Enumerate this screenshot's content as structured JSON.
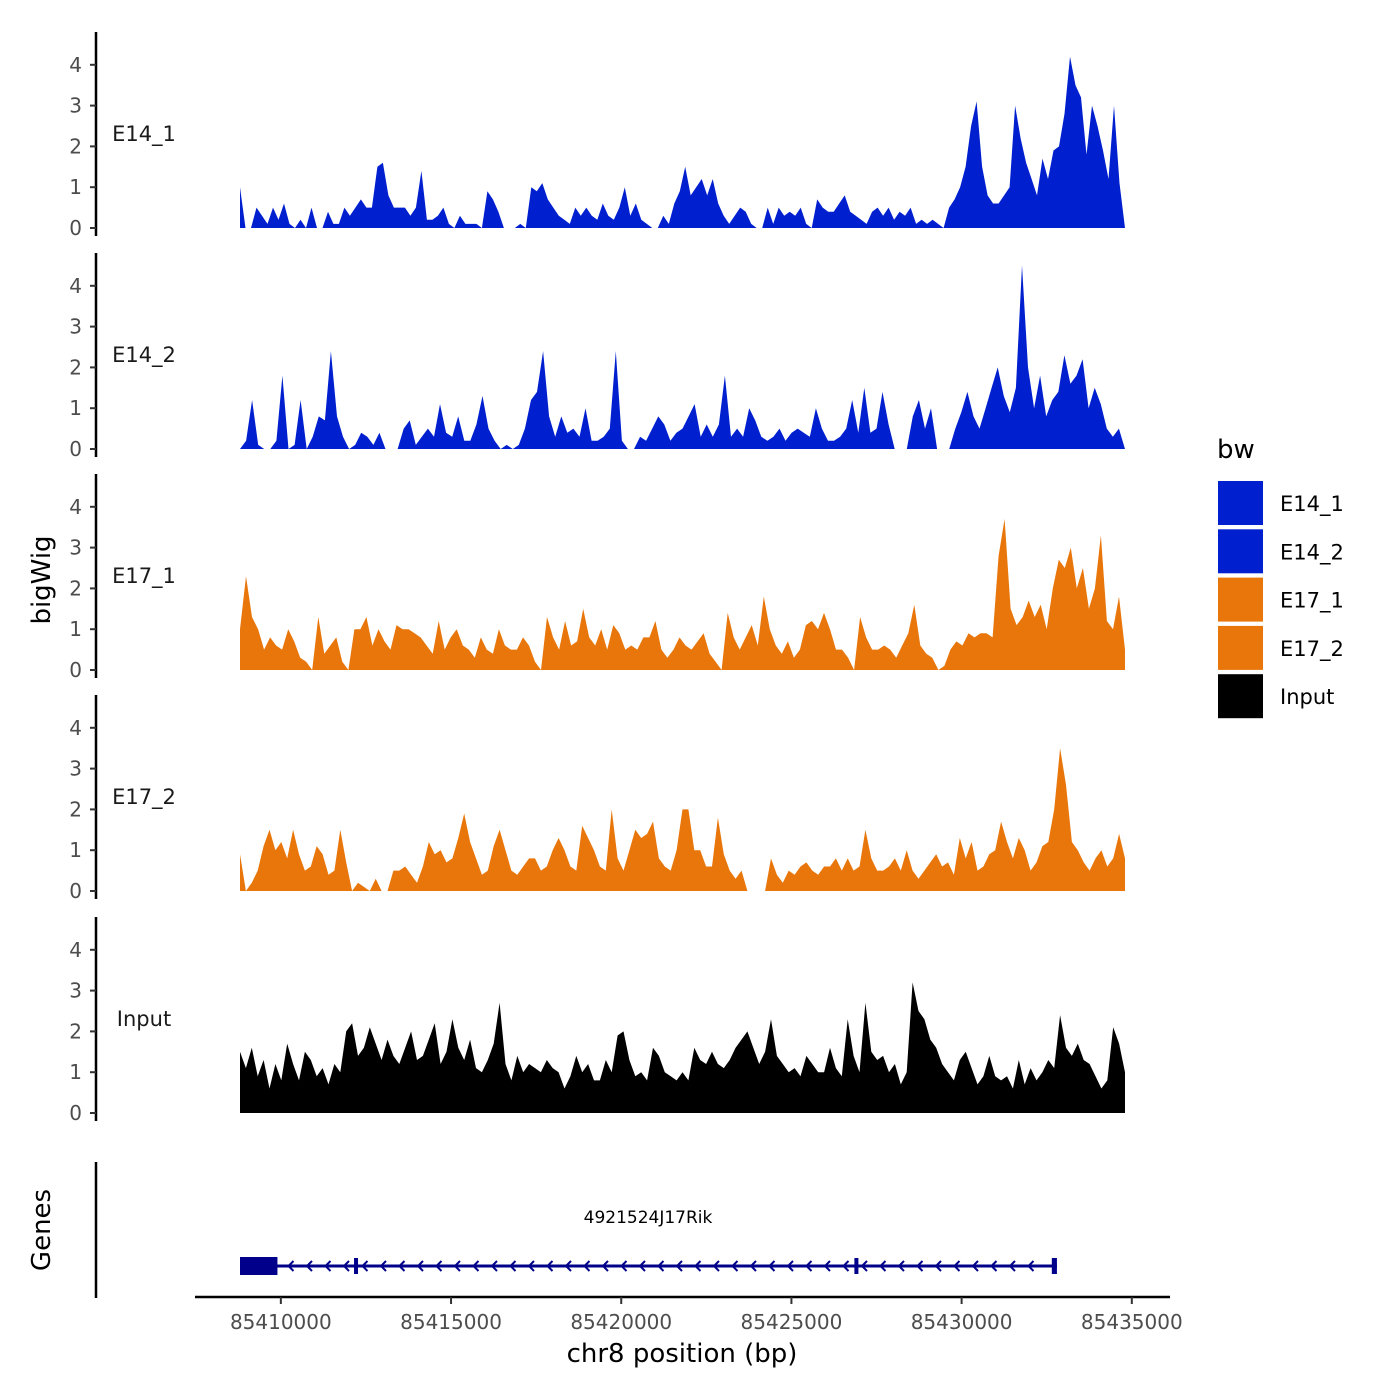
{
  "chart_data": {
    "type": "area",
    "title": "",
    "xlabel": "chr8 position (bp)",
    "ylabel": "bigWig",
    "genes_label": "Genes",
    "xlim": [
      85407200,
      85435600
    ],
    "ylim": [
      0,
      4.6
    ],
    "x_ticks": [
      85410000,
      85415000,
      85420000,
      85425000,
      85430000,
      85435000
    ],
    "x_tick_labels": [
      "85410000",
      "85415000",
      "85420000",
      "85425000",
      "85430000",
      "85435000"
    ],
    "y_ticks": [
      0,
      1,
      2,
      3,
      4
    ],
    "y_tick_labels": [
      "0",
      "1",
      "2",
      "3",
      "4"
    ],
    "legend": {
      "title": "bw",
      "position": "right",
      "entries": [
        {
          "label": "E14_1",
          "color": "#0020d0"
        },
        {
          "label": "E14_2",
          "color": "#0020d0"
        },
        {
          "label": "E17_1",
          "color": "#e8760a"
        },
        {
          "label": "E17_2",
          "color": "#e8760a"
        },
        {
          "label": "Input",
          "color": "#000000"
        }
      ]
    },
    "tracks": [
      {
        "name": "E14_1",
        "color": "#0020d0",
        "x_start": 85408800,
        "x_end": 85434800,
        "values": [
          1.0,
          0,
          0,
          0.5,
          0.3,
          0.1,
          0.5,
          0.2,
          0.6,
          0.1,
          0,
          0.2,
          0,
          0.5,
          0,
          0,
          0.4,
          0.1,
          0.1,
          0.5,
          0.3,
          0.5,
          0.7,
          0.5,
          0.5,
          1.5,
          1.6,
          0.8,
          0.5,
          0.5,
          0.5,
          0.3,
          0.5,
          1.4,
          0.2,
          0.2,
          0.3,
          0.5,
          0.1,
          0,
          0.3,
          0.1,
          0.1,
          0.1,
          0,
          0.9,
          0.7,
          0.4,
          0,
          0,
          0,
          0.1,
          0,
          1.0,
          0.9,
          1.1,
          0.7,
          0.5,
          0.3,
          0.2,
          0.1,
          0.5,
          0.3,
          0.5,
          0.3,
          0.2,
          0.6,
          0.3,
          0.2,
          0.5,
          1.0,
          0.3,
          0.6,
          0.2,
          0.1,
          0,
          0,
          0.3,
          0.1,
          0.6,
          0.9,
          1.5,
          0.8,
          1.0,
          1.2,
          0.8,
          1.2,
          0.6,
          0.3,
          0.1,
          0.3,
          0.5,
          0.4,
          0.1,
          0,
          0,
          0.5,
          0.1,
          0.5,
          0.3,
          0.4,
          0.3,
          0.5,
          0.1,
          0,
          0.7,
          0.5,
          0.4,
          0.4,
          0.6,
          0.8,
          0.4,
          0.3,
          0.2,
          0.1,
          0.4,
          0.5,
          0.3,
          0.5,
          0.2,
          0.4,
          0.3,
          0.5,
          0.1,
          0.2,
          0.1,
          0.2,
          0.1,
          0,
          0.5,
          0.7,
          1.0,
          1.5,
          2.5,
          3.1,
          1.5,
          0.8,
          0.6,
          0.6,
          0.8,
          1.0,
          3.0,
          2.2,
          1.6,
          1.2,
          0.8,
          1.7,
          1.2,
          1.9,
          2.0,
          2.8,
          4.2,
          3.5,
          3.2,
          1.8,
          3.0,
          2.5,
          1.9,
          1.2,
          3.0,
          1.1,
          0
        ]
      },
      {
        "name": "E14_2",
        "color": "#0020d0",
        "x_start": 85408800,
        "x_end": 85434800,
        "values": [
          0,
          0.2,
          1.2,
          0.1,
          0,
          0,
          0.2,
          1.8,
          0,
          0.1,
          1.2,
          0,
          0.3,
          0.8,
          0.7,
          2.4,
          0.8,
          0.3,
          0,
          0.1,
          0.4,
          0.3,
          0.1,
          0.4,
          0,
          0,
          0,
          0.5,
          0.7,
          0.1,
          0.3,
          0.5,
          0.3,
          1.1,
          0.4,
          0.3,
          0.8,
          0.2,
          0.2,
          0.6,
          1.3,
          0.5,
          0.2,
          0,
          0.1,
          0,
          0.1,
          0.5,
          1.2,
          1.4,
          2.4,
          0.8,
          0.3,
          0.8,
          0.4,
          0.5,
          0.3,
          1.0,
          0.2,
          0.2,
          0.3,
          0.5,
          2.4,
          0.2,
          0,
          0,
          0.3,
          0.2,
          0.5,
          0.8,
          0.6,
          0.2,
          0.4,
          0.5,
          0.8,
          1.1,
          0.3,
          0.6,
          0.3,
          0.6,
          1.8,
          0.3,
          0.5,
          0.3,
          1.0,
          0.7,
          0.3,
          0.2,
          0.3,
          0.5,
          0.2,
          0.4,
          0.5,
          0.4,
          0.3,
          1.0,
          0.5,
          0.2,
          0.2,
          0.3,
          0.5,
          1.2,
          0.4,
          1.5,
          0.4,
          0.5,
          1.4,
          0.6,
          0,
          0,
          0,
          0.8,
          1.2,
          0.5,
          1.0,
          0,
          0,
          0,
          0.5,
          0.9,
          1.4,
          0.8,
          0.5,
          1.0,
          1.5,
          2.0,
          1.3,
          0.9,
          1.5,
          4.5,
          2.0,
          1.0,
          1.8,
          0.8,
          1.2,
          1.4,
          2.3,
          1.6,
          1.8,
          2.2,
          1.0,
          1.5,
          1.1,
          0.5,
          0.3,
          0.5,
          0
        ]
      },
      {
        "name": "E17_1",
        "color": "#e8760a",
        "x_start": 85408800,
        "x_end": 85434800,
        "values": [
          1.0,
          2.3,
          1.3,
          1.0,
          0.5,
          0.8,
          0.6,
          0.5,
          1.0,
          0.7,
          0.3,
          0.2,
          0,
          1.3,
          0.4,
          0.6,
          0.8,
          0.2,
          0,
          1.0,
          1.0,
          1.3,
          0.6,
          1.0,
          0.7,
          0.5,
          1.1,
          1.0,
          1.0,
          0.9,
          0.8,
          0.6,
          0.4,
          1.2,
          0.5,
          0.8,
          1.0,
          0.6,
          0.5,
          0.3,
          0.8,
          0.5,
          0.4,
          1.0,
          0.6,
          0.5,
          0.5,
          0.8,
          0.6,
          0.2,
          0,
          1.3,
          0.8,
          0.5,
          1.2,
          0.6,
          0.7,
          1.5,
          0.8,
          0.6,
          1.0,
          0.5,
          1.1,
          0.9,
          0.5,
          0.6,
          0.5,
          0.8,
          0.8,
          1.2,
          0.5,
          0.3,
          0.5,
          0.8,
          0.6,
          0.5,
          0.7,
          0.9,
          0.4,
          0.2,
          0,
          1.4,
          0.8,
          0.5,
          0.8,
          1.1,
          0.6,
          1.8,
          1.0,
          0.6,
          0.4,
          0.7,
          0.3,
          0.5,
          1.1,
          1.2,
          1.0,
          1.4,
          1.0,
          0.5,
          0.5,
          0.3,
          0,
          1.3,
          0.8,
          0.5,
          0.5,
          0.6,
          0.5,
          0.3,
          0.6,
          0.9,
          1.6,
          0.6,
          0.4,
          0.3,
          0,
          0.1,
          0.5,
          0.7,
          0.6,
          0.9,
          0.8,
          0.9,
          0.9,
          0.8,
          2.8,
          3.7,
          1.5,
          1.1,
          1.3,
          1.7,
          1.3,
          1.6,
          1.0,
          2.0,
          2.7,
          2.5,
          3.0,
          2.0,
          2.5,
          1.5,
          2.0,
          3.3,
          1.2,
          1.0,
          1.8,
          0.5
        ]
      },
      {
        "name": "E17_2",
        "color": "#e8760a",
        "x_start": 85408800,
        "x_end": 85434800,
        "values": [
          0.9,
          0,
          0.2,
          0.5,
          1.1,
          1.5,
          1.0,
          1.2,
          0.8,
          1.5,
          0.9,
          0.5,
          0.6,
          1.1,
          0.9,
          0.4,
          0.5,
          1.5,
          0.7,
          0,
          0.2,
          0.1,
          0,
          0.3,
          0,
          0,
          0.5,
          0.5,
          0.6,
          0.4,
          0.2,
          0.6,
          1.2,
          0.9,
          1.0,
          0.7,
          0.8,
          1.3,
          1.9,
          1.2,
          0.8,
          0.4,
          0.5,
          1.1,
          1.5,
          1.0,
          0.5,
          0.4,
          0.6,
          0.8,
          0.8,
          0.5,
          0.6,
          1.0,
          1.3,
          1.0,
          0.6,
          0.5,
          1.6,
          1.3,
          1.0,
          0.6,
          0.5,
          2.0,
          0.8,
          0.5,
          1.0,
          1.5,
          1.3,
          1.4,
          1.7,
          0.8,
          0.6,
          0.5,
          1.0,
          2.0,
          2.0,
          1.0,
          1.0,
          0.6,
          0.6,
          1.8,
          0.9,
          0.5,
          0.3,
          0.5,
          0,
          0,
          0,
          0,
          0.8,
          0.4,
          0.2,
          0.5,
          0.4,
          0.6,
          0.7,
          0.5,
          0.4,
          0.6,
          0.6,
          0.8,
          0.5,
          0.8,
          0.5,
          0.6,
          1.5,
          0.8,
          0.5,
          0.5,
          0.6,
          0.8,
          0.5,
          1.0,
          0.5,
          0.3,
          0.5,
          0.7,
          0.9,
          0.6,
          0.7,
          0.4,
          1.3,
          0.8,
          1.2,
          0.5,
          0.6,
          0.9,
          1.0,
          1.7,
          1.2,
          0.8,
          1.3,
          1.0,
          0.5,
          0.7,
          1.1,
          1.2,
          2.0,
          3.5,
          2.6,
          1.2,
          1.0,
          0.7,
          0.5,
          0.8,
          1.0,
          0.6,
          0.8,
          1.4,
          0.8
        ]
      },
      {
        "name": "Input",
        "color": "#000000",
        "x_start": 85408800,
        "x_end": 85434800,
        "values": [
          1.5,
          1.1,
          1.6,
          0.9,
          1.3,
          0.6,
          1.2,
          0.8,
          1.7,
          1.2,
          0.8,
          1.5,
          1.3,
          0.9,
          1.1,
          0.7,
          1.2,
          1.0,
          2.0,
          2.2,
          1.4,
          1.6,
          2.1,
          1.7,
          1.3,
          1.8,
          1.4,
          1.2,
          1.6,
          2.0,
          1.3,
          1.4,
          1.8,
          2.2,
          1.2,
          1.5,
          2.3,
          1.6,
          1.3,
          1.8,
          1.1,
          1.0,
          1.3,
          1.7,
          2.7,
          1.2,
          0.8,
          1.4,
          1.0,
          1.2,
          1.1,
          1.0,
          1.3,
          1.1,
          1.0,
          0.6,
          0.9,
          1.4,
          1.0,
          1.2,
          0.8,
          0.8,
          1.3,
          1.0,
          1.9,
          2.0,
          1.3,
          0.9,
          1.0,
          0.8,
          1.6,
          1.4,
          1.0,
          0.9,
          0.8,
          1.0,
          0.8,
          1.6,
          1.3,
          1.2,
          1.5,
          1.2,
          1.1,
          1.3,
          1.6,
          1.8,
          2.0,
          1.6,
          1.2,
          1.5,
          2.3,
          1.4,
          1.2,
          1.0,
          1.1,
          0.9,
          1.4,
          1.2,
          1.0,
          1.0,
          1.6,
          1.1,
          0.9,
          2.3,
          1.4,
          1.0,
          2.7,
          1.5,
          1.3,
          1.4,
          1.0,
          1.2,
          0.7,
          1.0,
          3.2,
          2.5,
          2.3,
          1.8,
          1.6,
          1.2,
          1.0,
          0.8,
          1.3,
          1.5,
          1.1,
          0.7,
          0.9,
          1.4,
          0.9,
          0.8,
          0.9,
          0.6,
          1.3,
          0.7,
          1.1,
          0.8,
          1.0,
          1.3,
          1.1,
          2.4,
          1.6,
          1.4,
          1.7,
          1.3,
          1.2,
          0.9,
          0.6,
          0.8,
          2.1,
          1.7,
          1.0
        ]
      }
    ],
    "gene": {
      "name": "4921524J17Rik",
      "strand": "-",
      "start": 85408800,
      "end": 85432800,
      "exons": [
        [
          85408800,
          85409900
        ],
        [
          85412150,
          85412250
        ],
        [
          85426850,
          85426950
        ],
        [
          85432650,
          85432800
        ]
      ],
      "color": "#00008b"
    }
  }
}
